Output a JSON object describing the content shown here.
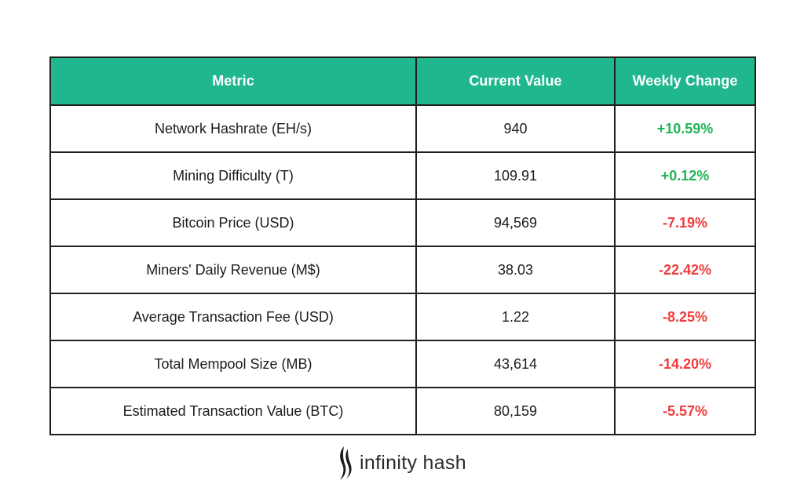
{
  "table": {
    "headers": {
      "metric": "Metric",
      "current": "Current Value",
      "change": "Weekly Change"
    },
    "rows": [
      {
        "metric": "Network Hashrate (EH/s)",
        "current": "940",
        "change": "+10.59%",
        "direction": "positive"
      },
      {
        "metric": "Mining Difficulty (T)",
        "current": "109.91",
        "change": "+0.12%",
        "direction": "positive"
      },
      {
        "metric": "Bitcoin Price (USD)",
        "current": "94,569",
        "change": "-7.19%",
        "direction": "negative"
      },
      {
        "metric": "Miners' Daily Revenue (M$)",
        "current": "38.03",
        "change": "-22.42%",
        "direction": "negative"
      },
      {
        "metric": "Average Transaction Fee (USD)",
        "current": "1.22",
        "change": "-8.25%",
        "direction": "negative"
      },
      {
        "metric": "Total Mempool Size (MB)",
        "current": "43,614",
        "change": "-14.20%",
        "direction": "negative"
      },
      {
        "metric": "Estimated Transaction Value (BTC)",
        "current": "80,159",
        "change": "-5.57%",
        "direction": "negative"
      }
    ]
  },
  "colors": {
    "header_bg": "#20b78e",
    "header_text": "#ffffff",
    "positive": "#1fb455",
    "negative": "#ee3d3b",
    "border": "#1f1f1f"
  },
  "brand": {
    "name": "infinity hash",
    "logo_icon": "infinity-hash-logo-icon"
  }
}
